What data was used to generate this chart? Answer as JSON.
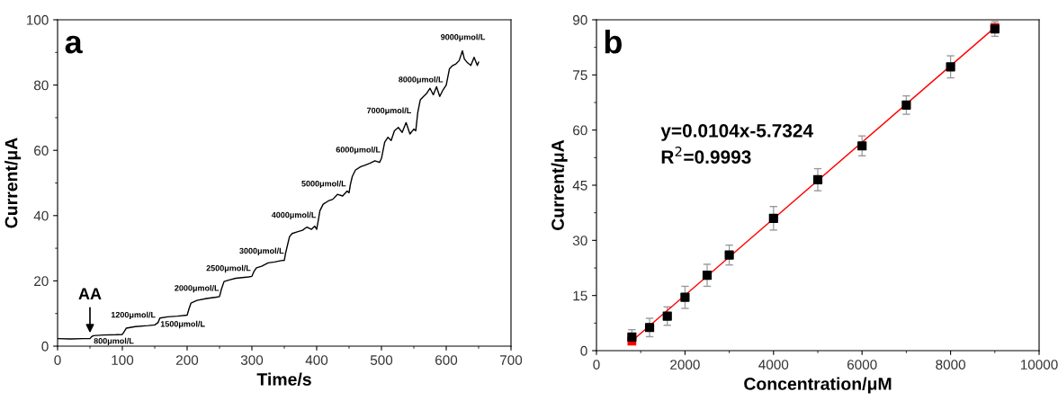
{
  "chart_data": [
    {
      "type": "line",
      "xlabel": "Time/s",
      "ylabel": "Current/μA",
      "xlim": [
        0,
        700
      ],
      "ylim": [
        0,
        100
      ],
      "xticks": [
        0,
        100,
        200,
        300,
        400,
        500,
        600,
        700
      ],
      "yticks": [
        0,
        20,
        40,
        60,
        80,
        100
      ],
      "grid": false,
      "legend": false,
      "marker": "none",
      "line_style": "solid",
      "series": [
        {
          "color": "#000000",
          "x": [
            0,
            20,
            40,
            50,
            52,
            55,
            70,
            90,
            100,
            103,
            106,
            120,
            140,
            150,
            155,
            158,
            170,
            185,
            200,
            203,
            206,
            215,
            230,
            245,
            250,
            253,
            257,
            265,
            275,
            285,
            295,
            300,
            303,
            307,
            315,
            325,
            335,
            345,
            350,
            352,
            355,
            358,
            362,
            370,
            378,
            385,
            392,
            397,
            400,
            402,
            405,
            410,
            418,
            425,
            432,
            440,
            447,
            450,
            452,
            455,
            460,
            468,
            475,
            482,
            490,
            497,
            500,
            502,
            505,
            510,
            515,
            520,
            526,
            532,
            538,
            544,
            550,
            553,
            556,
            560,
            565,
            570,
            575,
            580,
            585,
            590,
            595,
            600,
            602,
            605,
            610,
            615,
            620,
            625,
            628,
            632,
            638,
            643,
            648,
            650
          ],
          "values": [
            2.3,
            2.2,
            2.3,
            2.3,
            2.8,
            3.2,
            3.4,
            3.5,
            3.6,
            4.5,
            5.5,
            6.0,
            6.3,
            6.5,
            7.2,
            8.6,
            9.0,
            9.2,
            9.5,
            11.5,
            13.2,
            14.0,
            14.6,
            15.0,
            15.2,
            17.5,
            19.8,
            20.3,
            20.8,
            21.0,
            21.2,
            21.4,
            22.8,
            24.0,
            24.5,
            25.5,
            25.8,
            26.2,
            26.3,
            28.5,
            31.0,
            33.5,
            34.5,
            35.0,
            35.5,
            36.5,
            35.8,
            36.8,
            35.8,
            38.0,
            41.5,
            43.5,
            44.5,
            45.0,
            46.5,
            46.0,
            47.5,
            47.0,
            49.5,
            52.0,
            54.0,
            55.0,
            55.5,
            56.0,
            56.8,
            56.3,
            57.5,
            59.5,
            62.5,
            64.0,
            63.0,
            66.0,
            67.0,
            65.5,
            68.5,
            65.0,
            66.5,
            66.0,
            71.5,
            75.5,
            76.5,
            77.5,
            79.0,
            77.0,
            79.5,
            76.5,
            78.5,
            80.0,
            82.0,
            85.0,
            86.0,
            86.5,
            87.5,
            90.5,
            88.0,
            87.0,
            86.0,
            88.5,
            86.0,
            87.0
          ]
        }
      ],
      "annotations": [
        "a",
        {
          "text": "AA",
          "x": 50,
          "y": 2.3
        },
        "800μmol/L",
        "1200μmol/L",
        "1500μmol/L",
        "2000μmol/L",
        "2500μmol/L",
        "3000μmol/L",
        "4000μmol/L",
        "5000μmol/L",
        "6000μmol/L",
        "7000μmol/L",
        "8000μmol/L",
        "9000μmol/L"
      ]
    },
    {
      "type": "scatter",
      "xlabel": "Concentration/μM",
      "ylabel": "Current/μA",
      "xlim": [
        0,
        10000
      ],
      "ylim": [
        0,
        90
      ],
      "xticks": [
        0,
        2000,
        4000,
        6000,
        8000,
        10000
      ],
      "yticks": [
        0,
        15,
        30,
        45,
        60,
        75,
        90
      ],
      "grid": false,
      "legend": false,
      "marker": "square",
      "series": [
        {
          "type": "scatter",
          "color": "#000000",
          "x": [
            800,
            1200,
            1600,
            2000,
            2500,
            3000,
            4000,
            5000,
            6000,
            7000,
            8000,
            9000
          ],
          "values": [
            3.7,
            6.3,
            9.4,
            14.5,
            20.5,
            26.0,
            36.0,
            46.5,
            55.7,
            66.8,
            77.2,
            87.5
          ],
          "errors": [
            2.0,
            2.5,
            2.5,
            3.0,
            3.0,
            2.7,
            3.2,
            3.0,
            2.7,
            2.5,
            3.0,
            2.0
          ]
        },
        {
          "type": "line",
          "color": "#ff0000",
          "x": [
            800,
            9000
          ],
          "values": [
            2.6,
            87.9
          ]
        }
      ],
      "annotations": [
        "b",
        "y=0.0104x-5.7324",
        "R$^{2}$=0.9993"
      ]
    }
  ]
}
